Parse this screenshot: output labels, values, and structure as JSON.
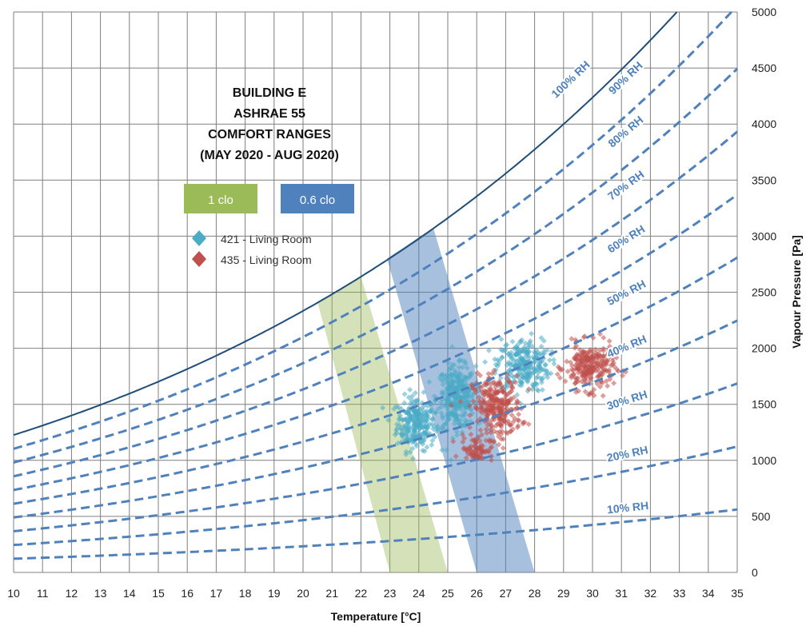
{
  "chart_data": {
    "type": "scatter",
    "title_lines": [
      "BUILDING E",
      "ASHRAE 55",
      "COMFORT RANGES",
      "(MAY 2020 - AUG 2020)"
    ],
    "xlabel": "Temperature [°C]",
    "ylabel": "Vapour Pressure [Pa]",
    "xlim": [
      10,
      35
    ],
    "ylim": [
      0,
      5000
    ],
    "x_ticks": [
      10,
      11,
      12,
      13,
      14,
      15,
      16,
      17,
      18,
      19,
      20,
      21,
      22,
      23,
      24,
      25,
      26,
      27,
      28,
      29,
      30,
      31,
      32,
      33,
      34,
      35
    ],
    "y_ticks": [
      0,
      500,
      1000,
      1500,
      2000,
      2500,
      3000,
      3500,
      4000,
      4500,
      5000
    ],
    "grid": true,
    "y_axis_position": "right",
    "saturation_curve_color": "#1f4e79",
    "rh_curve_color": "#4f81bd",
    "rh_curves": [
      {
        "rh": 10,
        "label": "10% RH"
      },
      {
        "rh": 20,
        "label": "20% RH"
      },
      {
        "rh": 30,
        "label": "30% RH"
      },
      {
        "rh": 40,
        "label": "40% RH"
      },
      {
        "rh": 50,
        "label": "50% RH"
      },
      {
        "rh": 60,
        "label": "60% RH"
      },
      {
        "rh": 70,
        "label": "70% RH"
      },
      {
        "rh": 80,
        "label": "80% RH"
      },
      {
        "rh": 90,
        "label": "90% RH"
      },
      {
        "rh": 100,
        "label": "100% RH"
      }
    ],
    "comfort_zones": [
      {
        "label": "1 clo",
        "color": "#9bbb59",
        "polygon": [
          [
            23.0,
            0
          ],
          [
            25.0,
            0
          ],
          [
            22.0,
            2640
          ],
          [
            20.5,
            2410
          ]
        ]
      },
      {
        "label": "0.6 clo",
        "color": "#4f81bd",
        "polygon": [
          [
            26.0,
            0
          ],
          [
            28.0,
            0
          ],
          [
            24.5,
            3075
          ],
          [
            22.9,
            2800
          ]
        ]
      }
    ],
    "series": [
      {
        "name": "421 - Living Room",
        "color": "#4bacc6",
        "marker": "diamond",
        "clusters": [
          {
            "x_center": 23.9,
            "y_center": 1330,
            "x_spread": 0.55,
            "y_spread": 200,
            "count": 260
          },
          {
            "x_center": 25.3,
            "y_center": 1560,
            "x_spread": 0.55,
            "y_spread": 230,
            "count": 320
          },
          {
            "x_center": 27.6,
            "y_center": 1850,
            "x_spread": 0.75,
            "y_spread": 200,
            "count": 260
          }
        ]
      },
      {
        "name": "435 - Living Room",
        "color": "#c0504d",
        "marker": "diamond",
        "clusters": [
          {
            "x_center": 26.7,
            "y_center": 1470,
            "x_spread": 0.7,
            "y_spread": 230,
            "count": 300
          },
          {
            "x_center": 29.9,
            "y_center": 1830,
            "x_spread": 0.7,
            "y_spread": 170,
            "count": 260
          },
          {
            "x_center": 26.0,
            "y_center": 1100,
            "x_spread": 0.45,
            "y_spread": 90,
            "count": 70
          }
        ]
      }
    ]
  }
}
